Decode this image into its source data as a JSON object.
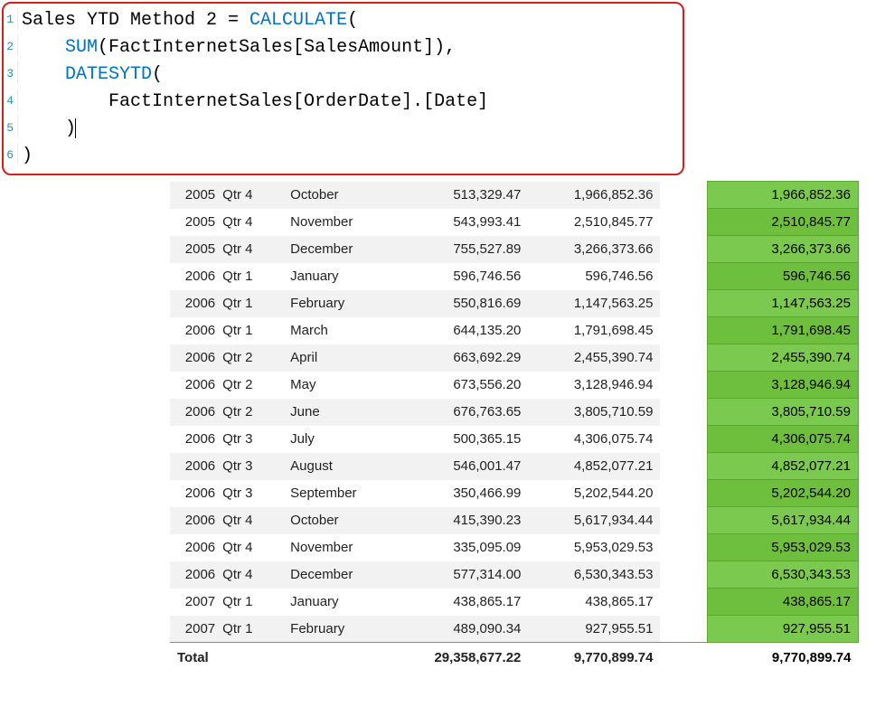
{
  "formula": {
    "lines": [
      {
        "n": "1",
        "segments": [
          {
            "t": "Sales YTD Method 2 = "
          },
          {
            "t": "CALCULATE",
            "kw": true
          },
          {
            "t": "("
          }
        ]
      },
      {
        "n": "2",
        "segments": [
          {
            "t": "    "
          },
          {
            "t": "SUM",
            "kw": true
          },
          {
            "t": "(FactInternetSales[SalesAmount]),"
          }
        ]
      },
      {
        "n": "3",
        "segments": [
          {
            "t": "    "
          },
          {
            "t": "DATESYTD",
            "kw": true
          },
          {
            "t": "("
          }
        ]
      },
      {
        "n": "4",
        "segments": [
          {
            "t": "        FactInternetSales[OrderDate].[Date]"
          }
        ]
      },
      {
        "n": "5",
        "segments": [
          {
            "t": "    )"
          }
        ],
        "cursor": true
      },
      {
        "n": "6",
        "segments": [
          {
            "t": ")"
          }
        ]
      }
    ],
    "keyword_color": "#0070c0",
    "border_color": "#d02020"
  },
  "table": {
    "highlight_colors": {
      "odd": "#6fbf3f",
      "even": "#7cc94f"
    },
    "rows": [
      {
        "year": "2005",
        "qtr": "Qtr 4",
        "month": "October",
        "amount": "513,329.47",
        "ytd1": "1,966,852.36",
        "ytd2": "1,966,852.36"
      },
      {
        "year": "2005",
        "qtr": "Qtr 4",
        "month": "November",
        "amount": "543,993.41",
        "ytd1": "2,510,845.77",
        "ytd2": "2,510,845.77"
      },
      {
        "year": "2005",
        "qtr": "Qtr 4",
        "month": "December",
        "amount": "755,527.89",
        "ytd1": "3,266,373.66",
        "ytd2": "3,266,373.66"
      },
      {
        "year": "2006",
        "qtr": "Qtr 1",
        "month": "January",
        "amount": "596,746.56",
        "ytd1": "596,746.56",
        "ytd2": "596,746.56"
      },
      {
        "year": "2006",
        "qtr": "Qtr 1",
        "month": "February",
        "amount": "550,816.69",
        "ytd1": "1,147,563.25",
        "ytd2": "1,147,563.25"
      },
      {
        "year": "2006",
        "qtr": "Qtr 1",
        "month": "March",
        "amount": "644,135.20",
        "ytd1": "1,791,698.45",
        "ytd2": "1,791,698.45"
      },
      {
        "year": "2006",
        "qtr": "Qtr 2",
        "month": "April",
        "amount": "663,692.29",
        "ytd1": "2,455,390.74",
        "ytd2": "2,455,390.74"
      },
      {
        "year": "2006",
        "qtr": "Qtr 2",
        "month": "May",
        "amount": "673,556.20",
        "ytd1": "3,128,946.94",
        "ytd2": "3,128,946.94"
      },
      {
        "year": "2006",
        "qtr": "Qtr 2",
        "month": "June",
        "amount": "676,763.65",
        "ytd1": "3,805,710.59",
        "ytd2": "3,805,710.59"
      },
      {
        "year": "2006",
        "qtr": "Qtr 3",
        "month": "July",
        "amount": "500,365.15",
        "ytd1": "4,306,075.74",
        "ytd2": "4,306,075.74"
      },
      {
        "year": "2006",
        "qtr": "Qtr 3",
        "month": "August",
        "amount": "546,001.47",
        "ytd1": "4,852,077.21",
        "ytd2": "4,852,077.21"
      },
      {
        "year": "2006",
        "qtr": "Qtr 3",
        "month": "September",
        "amount": "350,466.99",
        "ytd1": "5,202,544.20",
        "ytd2": "5,202,544.20"
      },
      {
        "year": "2006",
        "qtr": "Qtr 4",
        "month": "October",
        "amount": "415,390.23",
        "ytd1": "5,617,934.44",
        "ytd2": "5,617,934.44"
      },
      {
        "year": "2006",
        "qtr": "Qtr 4",
        "month": "November",
        "amount": "335,095.09",
        "ytd1": "5,953,029.53",
        "ytd2": "5,953,029.53"
      },
      {
        "year": "2006",
        "qtr": "Qtr 4",
        "month": "December",
        "amount": "577,314.00",
        "ytd1": "6,530,343.53",
        "ytd2": "6,530,343.53"
      },
      {
        "year": "2007",
        "qtr": "Qtr 1",
        "month": "January",
        "amount": "438,865.17",
        "ytd1": "438,865.17",
        "ytd2": "438,865.17"
      },
      {
        "year": "2007",
        "qtr": "Qtr 1",
        "month": "February",
        "amount": "489,090.34",
        "ytd1": "927,955.51",
        "ytd2": "927,955.51"
      }
    ],
    "total": {
      "label": "Total",
      "amount": "29,358,677.22",
      "ytd1": "9,770,899.74",
      "ytd2": "9,770,899.74"
    }
  }
}
